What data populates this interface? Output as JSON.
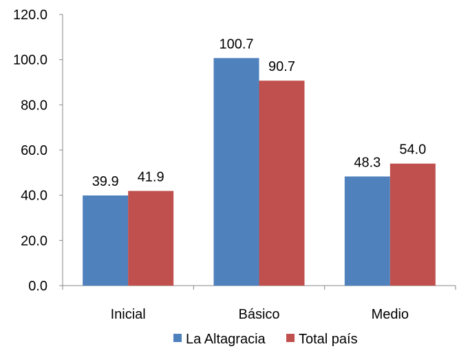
{
  "chart_data": {
    "type": "bar",
    "title": "",
    "xlabel": "",
    "ylabel": "",
    "categories": [
      "Inicial",
      "Básico",
      "Medio"
    ],
    "series": [
      {
        "name": "La Altagracia",
        "values": [
          39.9,
          100.7,
          48.3
        ],
        "color": "#4F81BD"
      },
      {
        "name": "Total país",
        "values": [
          41.9,
          90.7,
          54.0
        ],
        "color": "#C0504D"
      }
    ],
    "ylim": [
      0,
      120
    ],
    "yticks": [
      0,
      20,
      40,
      60,
      80,
      100,
      120
    ],
    "ytick_labels": [
      "0.0",
      "20.0",
      "40.0",
      "60.0",
      "80.0",
      "100.0",
      "120.0"
    ],
    "data_labels": [
      [
        "39.9",
        "100.7",
        "48.3"
      ],
      [
        "41.9",
        "90.7",
        "54.0"
      ]
    ],
    "grid": false,
    "legend_position": "bottom"
  }
}
